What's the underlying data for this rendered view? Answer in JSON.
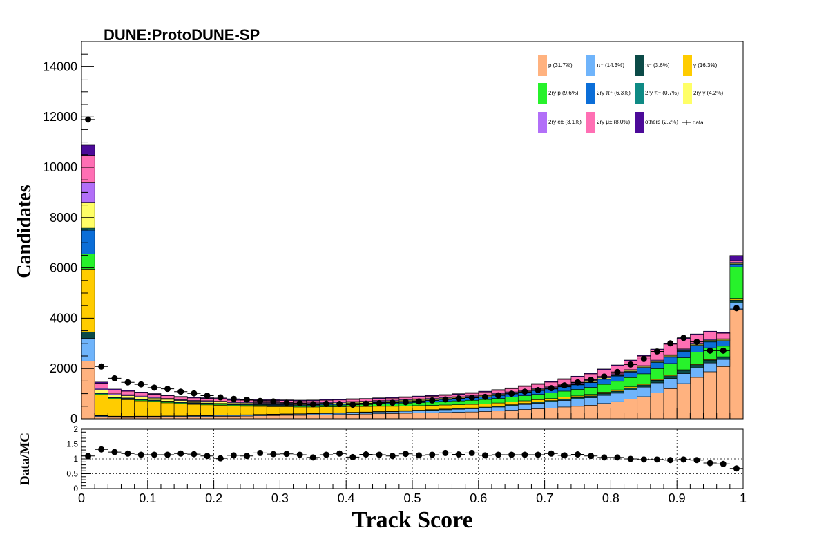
{
  "chart_data": [
    {
      "type": "bar",
      "stacked": true,
      "title": "DUNE:ProtoDUNE-SP",
      "xlabel": "Track Score",
      "ylabel": "Candidates",
      "xlim": [
        0,
        1
      ],
      "ylim": [
        0,
        15000
      ],
      "yticks": [
        "0",
        "2000",
        "4000",
        "6000",
        "8000",
        "10000",
        "12000",
        "14000"
      ],
      "xticks": [
        "0",
        "0.1",
        "0.2",
        "0.3",
        "0.4",
        "0.5",
        "0.6",
        "0.7",
        "0.8",
        "0.9",
        "1"
      ],
      "bin_width": 0.02,
      "legend_position": "top-right",
      "series": [
        {
          "name": "p (31.7%)",
          "color": "#ffb27f",
          "values": [
            2300,
            80,
            60,
            55,
            60,
            60,
            70,
            70,
            80,
            90,
            100,
            100,
            110,
            120,
            130,
            140,
            140,
            150,
            160,
            170,
            180,
            190,
            200,
            210,
            220,
            230,
            240,
            250,
            260,
            270,
            290,
            310,
            340,
            370,
            400,
            430,
            470,
            500,
            540,
            610,
            680,
            780,
            880,
            1030,
            1200,
            1400,
            1650,
            1870,
            2080,
            4350
          ]
        },
        {
          "name": "π⁺ (14.3%)",
          "color": "#6fb4fb",
          "values": [
            900,
            30,
            30,
            30,
            30,
            30,
            30,
            30,
            30,
            30,
            35,
            35,
            35,
            40,
            40,
            40,
            45,
            45,
            50,
            50,
            60,
            60,
            70,
            70,
            80,
            90,
            100,
            110,
            120,
            130,
            140,
            160,
            180,
            200,
            220,
            240,
            260,
            280,
            300,
            320,
            340,
            360,
            380,
            400,
            400,
            400,
            380,
            350,
            280,
            250
          ]
        },
        {
          "name": "π⁻ (3.6%)",
          "color": "#0b4a47",
          "values": [
            250,
            20,
            15,
            15,
            15,
            15,
            15,
            15,
            15,
            15,
            15,
            15,
            15,
            15,
            15,
            15,
            15,
            15,
            20,
            20,
            20,
            20,
            20,
            20,
            25,
            25,
            25,
            30,
            30,
            35,
            35,
            40,
            40,
            45,
            50,
            55,
            60,
            65,
            70,
            75,
            80,
            85,
            90,
            100,
            110,
            120,
            120,
            110,
            90,
            120
          ]
        },
        {
          "name": "γ (16.3%)",
          "color": "#ffcc00",
          "values": [
            2500,
            820,
            690,
            660,
            610,
            570,
            520,
            480,
            450,
            420,
            390,
            360,
            340,
            320,
            300,
            290,
            270,
            260,
            250,
            240,
            230,
            220,
            210,
            200,
            190,
            180,
            170,
            160,
            150,
            140,
            130,
            120,
            110,
            100,
            90,
            80,
            70,
            65,
            60,
            55,
            50,
            45,
            40,
            35,
            30,
            30,
            25,
            25,
            20,
            70
          ]
        },
        {
          "name": "2ry p (9.6%)",
          "color": "#27f22b",
          "values": [
            600,
            40,
            35,
            35,
            35,
            35,
            35,
            35,
            35,
            40,
            40,
            40,
            45,
            45,
            50,
            50,
            55,
            60,
            65,
            70,
            75,
            80,
            90,
            100,
            110,
            120,
            130,
            140,
            150,
            160,
            170,
            180,
            190,
            200,
            210,
            220,
            240,
            260,
            280,
            310,
            340,
            370,
            400,
            430,
            460,
            480,
            480,
            470,
            420,
            1250
          ]
        },
        {
          "name": "2ry π⁺ (6.3%)",
          "color": "#0b6ed8",
          "values": [
            950,
            30,
            25,
            25,
            25,
            25,
            25,
            25,
            25,
            25,
            25,
            25,
            25,
            25,
            30,
            30,
            30,
            30,
            35,
            40,
            45,
            50,
            55,
            60,
            65,
            70,
            75,
            80,
            90,
            100,
            110,
            120,
            130,
            140,
            150,
            160,
            170,
            180,
            190,
            200,
            210,
            220,
            230,
            240,
            250,
            250,
            240,
            230,
            200,
            90
          ]
        },
        {
          "name": "2ry π⁻ (0.7%)",
          "color": "#0e8a84",
          "values": [
            80,
            10,
            8,
            8,
            8,
            8,
            8,
            8,
            8,
            8,
            8,
            8,
            8,
            8,
            8,
            8,
            8,
            8,
            8,
            8,
            8,
            8,
            8,
            8,
            8,
            8,
            8,
            8,
            8,
            8,
            10,
            10,
            10,
            12,
            12,
            14,
            14,
            16,
            18,
            20,
            22,
            24,
            26,
            28,
            30,
            30,
            30,
            28,
            24,
            30
          ]
        },
        {
          "name": "2ry γ (4.2%)",
          "color": "#ffff66",
          "values": [
            1000,
            130,
            90,
            90,
            80,
            75,
            70,
            65,
            60,
            60,
            55,
            50,
            50,
            45,
            45,
            40,
            40,
            40,
            40,
            40,
            40,
            40,
            40,
            40,
            40,
            40,
            40,
            40,
            40,
            40,
            40,
            40,
            40,
            40,
            40,
            40,
            40,
            40,
            40,
            40,
            40,
            40,
            40,
            40,
            40,
            40,
            40,
            40,
            40,
            40
          ]
        },
        {
          "name": "2ry e± (3.1%)",
          "color": "#b26ff8",
          "values": [
            800,
            50,
            40,
            40,
            40,
            35,
            35,
            30,
            30,
            30,
            30,
            30,
            30,
            30,
            30,
            30,
            30,
            30,
            30,
            30,
            30,
            30,
            30,
            30,
            30,
            30,
            30,
            30,
            30,
            30,
            30,
            30,
            30,
            30,
            30,
            30,
            30,
            30,
            30,
            30,
            30,
            30,
            30,
            30,
            30,
            30,
            30,
            30,
            30,
            30
          ]
        },
        {
          "name": "2ry μ± (8.0%)",
          "color": "#ff6fb4",
          "values": [
            1100,
            200,
            150,
            140,
            130,
            120,
            110,
            100,
            95,
            90,
            85,
            80,
            80,
            80,
            80,
            80,
            80,
            80,
            80,
            80,
            80,
            80,
            80,
            80,
            80,
            80,
            80,
            85,
            90,
            100,
            110,
            120,
            130,
            150,
            170,
            190,
            210,
            230,
            260,
            290,
            320,
            350,
            380,
            410,
            420,
            400,
            350,
            300,
            220,
            60
          ]
        },
        {
          "name": "others (2.2%)",
          "color": "#4c0a99",
          "values": [
            400,
            50,
            40,
            35,
            30,
            30,
            30,
            30,
            30,
            30,
            30,
            30,
            30,
            30,
            30,
            30,
            30,
            30,
            30,
            30,
            30,
            30,
            30,
            30,
            30,
            30,
            30,
            30,
            30,
            30,
            30,
            30,
            30,
            30,
            30,
            30,
            30,
            30,
            30,
            30,
            30,
            30,
            30,
            30,
            30,
            30,
            30,
            30,
            30,
            200
          ]
        }
      ],
      "data": {
        "name": "data",
        "values": [
          11900,
          2080,
          1610,
          1450,
          1370,
          1240,
          1190,
          1080,
          1010,
          920,
          850,
          790,
          760,
          710,
          690,
          640,
          620,
          580,
          600,
          590,
          560,
          600,
          620,
          640,
          660,
          690,
          730,
          770,
          810,
          840,
          870,
          930,
          1000,
          1080,
          1140,
          1220,
          1330,
          1450,
          1550,
          1680,
          1860,
          2160,
          2380,
          2680,
          3000,
          3220,
          3060,
          2710,
          2710,
          4400
        ]
      }
    },
    {
      "type": "scatter",
      "ylabel": "Data/MC",
      "xlabel": "Track Score",
      "xlim": [
        0,
        1
      ],
      "ylim": [
        0,
        2
      ],
      "yticks": [
        "0",
        "0.5",
        "1",
        "1.5",
        "2"
      ],
      "grid": true,
      "values": [
        1.1,
        1.32,
        1.23,
        1.18,
        1.14,
        1.14,
        1.14,
        1.18,
        1.16,
        1.1,
        1.02,
        1.12,
        1.1,
        1.2,
        1.16,
        1.17,
        1.14,
        1.05,
        1.14,
        1.18,
        1.06,
        1.15,
        1.14,
        1.1,
        1.17,
        1.12,
        1.14,
        1.2,
        1.15,
        1.2,
        1.12,
        1.14,
        1.14,
        1.14,
        1.14,
        1.18,
        1.12,
        1.15,
        1.1,
        1.05,
        1.05,
        1.0,
        0.98,
        0.98,
        0.96,
        0.98,
        0.96,
        0.86,
        0.83,
        0.68
      ]
    }
  ]
}
